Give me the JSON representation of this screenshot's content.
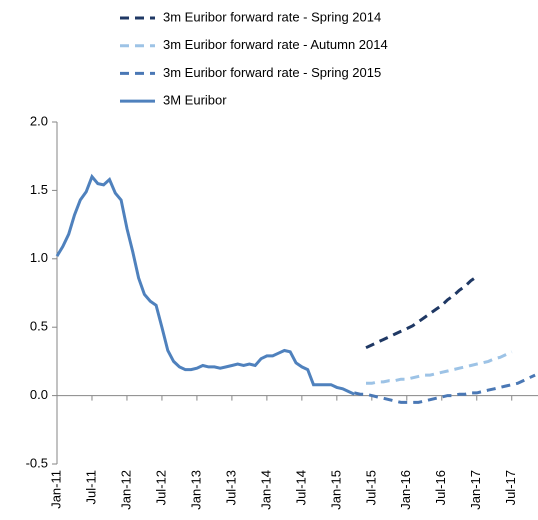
{
  "chart_data": {
    "type": "line",
    "categories": [
      "Jan-11",
      null,
      null,
      null,
      null,
      null,
      "Jul-11",
      null,
      null,
      null,
      null,
      null,
      "Jan-12",
      null,
      null,
      null,
      null,
      null,
      "Jul-12",
      null,
      null,
      null,
      null,
      null,
      "Jan-13",
      null,
      null,
      null,
      null,
      null,
      "Jul-13",
      null,
      null,
      null,
      null,
      null,
      "Jan-14",
      null,
      null,
      null,
      null,
      null,
      "Jul-14",
      null,
      null,
      null,
      null,
      null,
      "Jan-15",
      null,
      null,
      null,
      null,
      null,
      "Jul-15",
      null,
      null,
      null,
      null,
      null,
      "Jan-16",
      null,
      null,
      null,
      null,
      null,
      "Jul-16",
      null,
      null,
      null,
      null,
      null,
      "Jan-17",
      null,
      null,
      null,
      null,
      null,
      "Jul-17",
      null,
      null,
      null,
      null
    ],
    "series": [
      {
        "name": "3m Euribor forward rate - Spring 2014",
        "color": "#1f3864",
        "dashed": true,
        "values": [
          null,
          null,
          null,
          null,
          null,
          null,
          null,
          null,
          null,
          null,
          null,
          null,
          null,
          null,
          null,
          null,
          null,
          null,
          null,
          null,
          null,
          null,
          null,
          null,
          null,
          null,
          null,
          null,
          null,
          null,
          null,
          null,
          null,
          null,
          null,
          null,
          null,
          null,
          null,
          null,
          null,
          null,
          null,
          null,
          null,
          null,
          null,
          null,
          null,
          null,
          null,
          null,
          null,
          0.35,
          0.37,
          0.39,
          0.41,
          0.43,
          0.45,
          0.47,
          0.49,
          0.51,
          0.54,
          0.57,
          0.6,
          0.63,
          0.66,
          0.7,
          0.73,
          0.77,
          0.8,
          0.84,
          0.87,
          null,
          null,
          null,
          null,
          null,
          null,
          null,
          null,
          null,
          null
        ]
      },
      {
        "name": "3m Euribor forward rate - Autumn 2014",
        "color": "#9dc3e6",
        "dashed": true,
        "values": [
          null,
          null,
          null,
          null,
          null,
          null,
          null,
          null,
          null,
          null,
          null,
          null,
          null,
          null,
          null,
          null,
          null,
          null,
          null,
          null,
          null,
          null,
          null,
          null,
          null,
          null,
          null,
          null,
          null,
          null,
          null,
          null,
          null,
          null,
          null,
          null,
          null,
          null,
          null,
          null,
          null,
          null,
          null,
          null,
          null,
          null,
          null,
          null,
          null,
          null,
          null,
          null,
          null,
          0.09,
          0.09,
          0.1,
          0.1,
          0.11,
          0.11,
          0.12,
          0.12,
          0.13,
          0.14,
          0.15,
          0.15,
          0.16,
          0.17,
          0.18,
          0.19,
          0.2,
          0.21,
          0.22,
          0.23,
          0.24,
          0.25,
          0.27,
          0.28,
          0.3,
          0.32,
          null,
          null,
          null,
          null
        ]
      },
      {
        "name": "3m Euribor forward rate - Spring 2015",
        "color": "#4a78b5",
        "dashed": true,
        "values": [
          null,
          null,
          null,
          null,
          null,
          null,
          null,
          null,
          null,
          null,
          null,
          null,
          null,
          null,
          null,
          null,
          null,
          null,
          null,
          null,
          null,
          null,
          null,
          null,
          null,
          null,
          null,
          null,
          null,
          null,
          null,
          null,
          null,
          null,
          null,
          null,
          null,
          null,
          null,
          null,
          null,
          null,
          null,
          null,
          null,
          null,
          null,
          null,
          null,
          null,
          null,
          0.02,
          0.01,
          0.01,
          0.0,
          -0.01,
          -0.02,
          -0.03,
          -0.04,
          -0.05,
          -0.05,
          -0.05,
          -0.05,
          -0.04,
          -0.03,
          -0.02,
          -0.01,
          0.0,
          0.0,
          0.01,
          0.01,
          0.02,
          0.02,
          0.03,
          0.04,
          0.05,
          0.06,
          0.07,
          0.08,
          0.09,
          0.11,
          0.13,
          0.15
        ]
      },
      {
        "name": "3M Euribor",
        "color": "#4f81bd",
        "dashed": false,
        "values": [
          1.02,
          1.09,
          1.18,
          1.32,
          1.43,
          1.49,
          1.6,
          1.55,
          1.54,
          1.58,
          1.48,
          1.43,
          1.22,
          1.05,
          0.86,
          0.74,
          0.69,
          0.66,
          0.5,
          0.33,
          0.25,
          0.21,
          0.19,
          0.19,
          0.2,
          0.22,
          0.21,
          0.21,
          0.2,
          0.21,
          0.22,
          0.23,
          0.22,
          0.23,
          0.22,
          0.27,
          0.29,
          0.29,
          0.31,
          0.33,
          0.32,
          0.24,
          0.21,
          0.19,
          0.08,
          0.08,
          0.08,
          0.08,
          0.06,
          0.05,
          0.03,
          0.01,
          null,
          null,
          null,
          null,
          null,
          null,
          null,
          null,
          null,
          null,
          null,
          null,
          null,
          null,
          null,
          null,
          null,
          null,
          null,
          null,
          null,
          null,
          null,
          null,
          null,
          null,
          null,
          null,
          null,
          null,
          null
        ]
      }
    ],
    "ylim": [
      -0.5,
      2.0
    ],
    "yticks": [
      -0.5,
      {
        "value": 0.0,
        "label": "0.0"
      },
      0.5,
      {
        "value": 1.0,
        "label": "1.0"
      },
      1.5,
      {
        "value": 2.0,
        "label": "2.0"
      }
    ],
    "grid": false
  }
}
